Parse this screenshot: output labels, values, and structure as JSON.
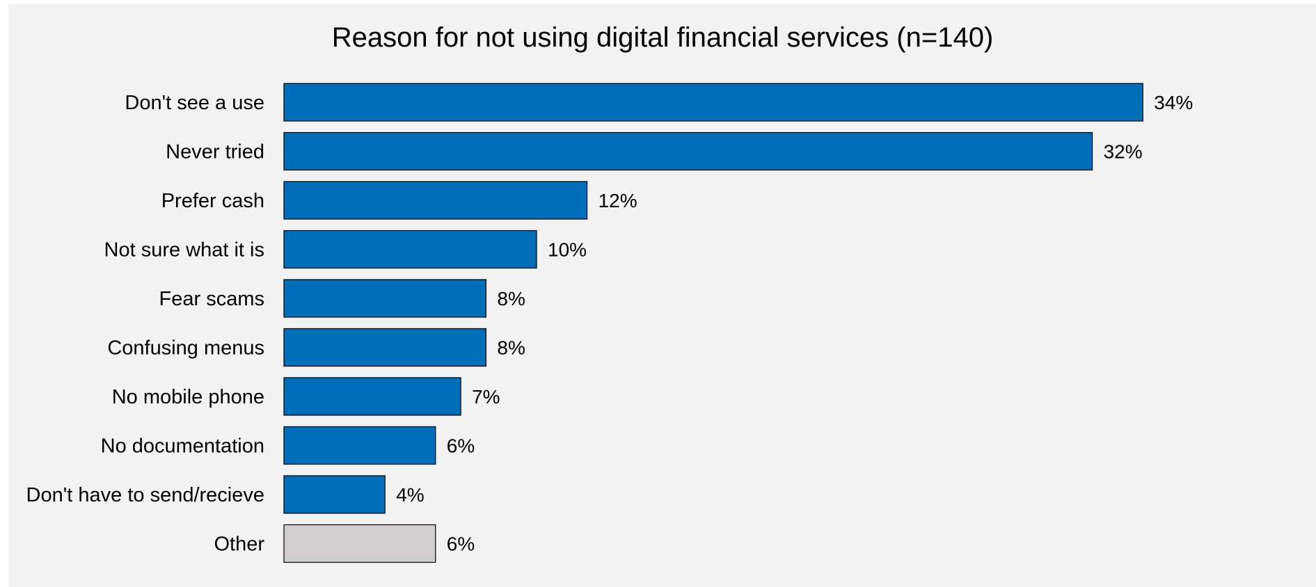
{
  "chart_data": {
    "type": "bar",
    "orientation": "horizontal",
    "title": "Reason for not using digital financial services (n=140)",
    "categories": [
      "Don't see a use",
      "Never tried",
      "Prefer cash",
      "Not sure what it is",
      "Fear scams",
      "Confusing menus",
      "No mobile phone",
      "No documentation",
      "Don't have to send/recieve",
      "Other"
    ],
    "values": [
      34,
      32,
      12,
      10,
      8,
      8,
      7,
      6,
      4,
      6
    ],
    "value_labels": [
      "34%",
      "32%",
      "12%",
      "10%",
      "8%",
      "8%",
      "7%",
      "6%",
      "4%",
      "6%"
    ],
    "xlim": [
      0,
      40
    ],
    "grid": false,
    "legend": "none",
    "colors": {
      "bar": "#006eb9",
      "other_bar": "#d0cece",
      "bar_border": "#000000",
      "background": "#f2f2f2"
    }
  }
}
